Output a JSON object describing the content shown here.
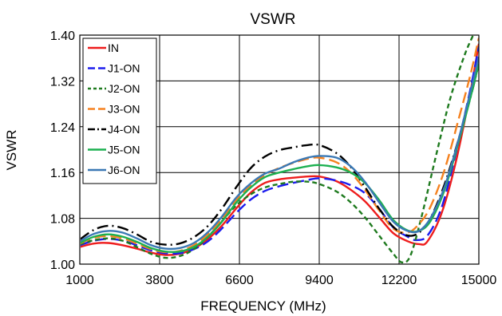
{
  "chart_data": {
    "type": "line",
    "title": "VSWR",
    "xlabel": "FREQUENCY (MHz)",
    "ylabel": "VSWR",
    "xlim": [
      1000,
      15000
    ],
    "ylim": [
      1.0,
      1.4
    ],
    "x_ticks": [
      1000,
      3800,
      6600,
      9400,
      12200,
      15000
    ],
    "x_tick_labels": [
      "1000",
      "3800",
      "6600",
      "9400",
      "12200",
      "15000"
    ],
    "y_ticks": [
      1.0,
      1.08,
      1.16,
      1.24,
      1.32,
      1.4
    ],
    "y_tick_labels": [
      "1.00",
      "1.08",
      "1.16",
      "1.24",
      "1.32",
      "1.40"
    ],
    "grid": true,
    "legend_position": "top-left",
    "series": [
      {
        "name": "IN",
        "color": "#ee1c1c",
        "dash": "solid",
        "points": [
          [
            1000,
            1.03
          ],
          [
            1500,
            1.036
          ],
          [
            2000,
            1.037
          ],
          [
            2500,
            1.033
          ],
          [
            3000,
            1.027
          ],
          [
            3500,
            1.02
          ],
          [
            4000,
            1.016
          ],
          [
            4500,
            1.018
          ],
          [
            5000,
            1.027
          ],
          [
            5500,
            1.044
          ],
          [
            6000,
            1.068
          ],
          [
            6500,
            1.098
          ],
          [
            7000,
            1.125
          ],
          [
            7500,
            1.142
          ],
          [
            8000,
            1.148
          ],
          [
            8500,
            1.151
          ],
          [
            9000,
            1.153
          ],
          [
            9400,
            1.153
          ],
          [
            10000,
            1.145
          ],
          [
            10500,
            1.13
          ],
          [
            11000,
            1.11
          ],
          [
            11500,
            1.082
          ],
          [
            12000,
            1.054
          ],
          [
            12500,
            1.04
          ],
          [
            12900,
            1.035
          ],
          [
            13200,
            1.04
          ],
          [
            13700,
            1.09
          ],
          [
            14200,
            1.18
          ],
          [
            14700,
            1.3
          ],
          [
            15000,
            1.385
          ]
        ]
      },
      {
        "name": "J1-ON",
        "color": "#1c1cee",
        "dash": "longdash",
        "points": [
          [
            1000,
            1.033
          ],
          [
            1500,
            1.041
          ],
          [
            2000,
            1.044
          ],
          [
            2500,
            1.041
          ],
          [
            3000,
            1.033
          ],
          [
            3500,
            1.024
          ],
          [
            4000,
            1.019
          ],
          [
            4500,
            1.019
          ],
          [
            5000,
            1.026
          ],
          [
            5500,
            1.04
          ],
          [
            6000,
            1.063
          ],
          [
            6500,
            1.09
          ],
          [
            7000,
            1.113
          ],
          [
            7500,
            1.128
          ],
          [
            8000,
            1.136
          ],
          [
            8500,
            1.142
          ],
          [
            9000,
            1.147
          ],
          [
            9400,
            1.15
          ],
          [
            10000,
            1.146
          ],
          [
            10500,
            1.138
          ],
          [
            11000,
            1.124
          ],
          [
            11500,
            1.097
          ],
          [
            12000,
            1.064
          ],
          [
            12500,
            1.048
          ],
          [
            12800,
            1.042
          ],
          [
            13200,
            1.05
          ],
          [
            13700,
            1.1
          ],
          [
            14200,
            1.195
          ],
          [
            14700,
            1.305
          ],
          [
            15000,
            1.38
          ]
        ]
      },
      {
        "name": "J2-ON",
        "color": "#1e7a1e",
        "dash": "shortdash",
        "points": [
          [
            1000,
            1.035
          ],
          [
            1500,
            1.042
          ],
          [
            2000,
            1.045
          ],
          [
            2500,
            1.041
          ],
          [
            3000,
            1.03
          ],
          [
            3500,
            1.018
          ],
          [
            4000,
            1.011
          ],
          [
            4500,
            1.014
          ],
          [
            5000,
            1.026
          ],
          [
            5500,
            1.048
          ],
          [
            6000,
            1.076
          ],
          [
            6500,
            1.103
          ],
          [
            7000,
            1.122
          ],
          [
            7500,
            1.134
          ],
          [
            8000,
            1.14
          ],
          [
            8500,
            1.144
          ],
          [
            9000,
            1.144
          ],
          [
            9400,
            1.14
          ],
          [
            10000,
            1.127
          ],
          [
            10500,
            1.108
          ],
          [
            11000,
            1.082
          ],
          [
            11500,
            1.05
          ],
          [
            12000,
            1.018
          ],
          [
            12300,
            1.003
          ],
          [
            12600,
            1.015
          ],
          [
            13000,
            1.085
          ],
          [
            13500,
            1.19
          ],
          [
            14000,
            1.29
          ],
          [
            14500,
            1.365
          ],
          [
            14800,
            1.4
          ]
        ]
      },
      {
        "name": "J3-ON",
        "color": "#f58220",
        "dash": "longdash",
        "points": [
          [
            1000,
            1.036
          ],
          [
            1500,
            1.046
          ],
          [
            2000,
            1.049
          ],
          [
            2500,
            1.045
          ],
          [
            3000,
            1.036
          ],
          [
            3500,
            1.026
          ],
          [
            4000,
            1.021
          ],
          [
            4500,
            1.023
          ],
          [
            5000,
            1.033
          ],
          [
            5500,
            1.052
          ],
          [
            6000,
            1.08
          ],
          [
            6500,
            1.112
          ],
          [
            7000,
            1.137
          ],
          [
            7500,
            1.156
          ],
          [
            8000,
            1.168
          ],
          [
            8500,
            1.177
          ],
          [
            9000,
            1.184
          ],
          [
            9400,
            1.186
          ],
          [
            10000,
            1.178
          ],
          [
            10500,
            1.16
          ],
          [
            11000,
            1.13
          ],
          [
            11500,
            1.094
          ],
          [
            12000,
            1.062
          ],
          [
            12500,
            1.055
          ],
          [
            12900,
            1.07
          ],
          [
            13300,
            1.1
          ],
          [
            13800,
            1.165
          ],
          [
            14300,
            1.255
          ],
          [
            14700,
            1.33
          ],
          [
            15000,
            1.395
          ]
        ]
      },
      {
        "name": "J4-ON",
        "color": "#000000",
        "dash": "dashdot",
        "points": [
          [
            1000,
            1.043
          ],
          [
            1500,
            1.06
          ],
          [
            2000,
            1.067
          ],
          [
            2500,
            1.063
          ],
          [
            3000,
            1.052
          ],
          [
            3500,
            1.039
          ],
          [
            4000,
            1.034
          ],
          [
            4500,
            1.036
          ],
          [
            5000,
            1.047
          ],
          [
            5500,
            1.067
          ],
          [
            6000,
            1.098
          ],
          [
            6500,
            1.135
          ],
          [
            7000,
            1.168
          ],
          [
            7500,
            1.188
          ],
          [
            8000,
            1.199
          ],
          [
            8500,
            1.204
          ],
          [
            9000,
            1.208
          ],
          [
            9400,
            1.208
          ],
          [
            10000,
            1.194
          ],
          [
            10500,
            1.17
          ],
          [
            11000,
            1.135
          ],
          [
            11500,
            1.097
          ],
          [
            12000,
            1.065
          ],
          [
            12500,
            1.05
          ],
          [
            12900,
            1.055
          ],
          [
            13300,
            1.08
          ],
          [
            13800,
            1.14
          ],
          [
            14300,
            1.22
          ],
          [
            14700,
            1.29
          ],
          [
            15000,
            1.35
          ]
        ]
      },
      {
        "name": "J5-ON",
        "color": "#1cb050",
        "dash": "solid",
        "points": [
          [
            1000,
            1.037
          ],
          [
            1500,
            1.048
          ],
          [
            2000,
            1.052
          ],
          [
            2500,
            1.048
          ],
          [
            3000,
            1.039
          ],
          [
            3500,
            1.028
          ],
          [
            4000,
            1.022
          ],
          [
            4500,
            1.022
          ],
          [
            5000,
            1.03
          ],
          [
            5500,
            1.048
          ],
          [
            6000,
            1.075
          ],
          [
            6500,
            1.108
          ],
          [
            7000,
            1.134
          ],
          [
            7500,
            1.152
          ],
          [
            8000,
            1.16
          ],
          [
            8500,
            1.166
          ],
          [
            9000,
            1.171
          ],
          [
            9400,
            1.173
          ],
          [
            10000,
            1.169
          ],
          [
            10500,
            1.16
          ],
          [
            11000,
            1.142
          ],
          [
            11500,
            1.112
          ],
          [
            12000,
            1.077
          ],
          [
            12500,
            1.059
          ],
          [
            12900,
            1.058
          ],
          [
            13300,
            1.075
          ],
          [
            13800,
            1.13
          ],
          [
            14300,
            1.215
          ],
          [
            14700,
            1.29
          ],
          [
            15000,
            1.35
          ]
        ]
      },
      {
        "name": "J6-ON",
        "color": "#3a78b4",
        "dash": "solid",
        "points": [
          [
            1000,
            1.04
          ],
          [
            1500,
            1.053
          ],
          [
            2000,
            1.058
          ],
          [
            2500,
            1.055
          ],
          [
            3000,
            1.045
          ],
          [
            3500,
            1.033
          ],
          [
            4000,
            1.027
          ],
          [
            4500,
            1.028
          ],
          [
            5000,
            1.037
          ],
          [
            5500,
            1.056
          ],
          [
            6000,
            1.084
          ],
          [
            6500,
            1.117
          ],
          [
            7000,
            1.141
          ],
          [
            7500,
            1.158
          ],
          [
            8000,
            1.167
          ],
          [
            8500,
            1.178
          ],
          [
            9000,
            1.186
          ],
          [
            9400,
            1.189
          ],
          [
            10000,
            1.186
          ],
          [
            10500,
            1.171
          ],
          [
            11000,
            1.144
          ],
          [
            11500,
            1.108
          ],
          [
            12000,
            1.074
          ],
          [
            12500,
            1.058
          ],
          [
            12900,
            1.058
          ],
          [
            13300,
            1.08
          ],
          [
            13800,
            1.135
          ],
          [
            14300,
            1.22
          ],
          [
            14700,
            1.3
          ],
          [
            15000,
            1.362
          ]
        ]
      }
    ]
  }
}
